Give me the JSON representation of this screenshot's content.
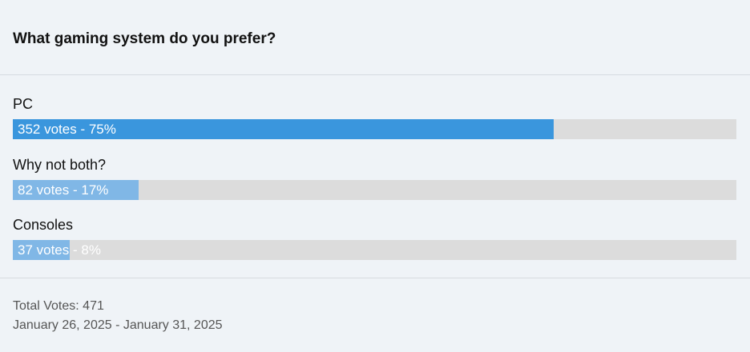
{
  "poll": {
    "question": "What gaming system do you prefer?",
    "total_votes": 471,
    "options": [
      {
        "label": "PC",
        "votes": 352,
        "votes_label": "352 votes - 75%",
        "color": "#3a96dd"
      },
      {
        "label": "Why not both?",
        "votes": 82,
        "votes_label": "82 votes - 17%",
        "color": "#80b7e6"
      },
      {
        "label": "Consoles",
        "votes": 37,
        "votes_label": "37 votes - 8%",
        "color": "#80b7e6"
      }
    ],
    "footer": {
      "total_label": "Total Votes: 471",
      "date_range": "January 26, 2025 - January 31, 2025"
    }
  }
}
